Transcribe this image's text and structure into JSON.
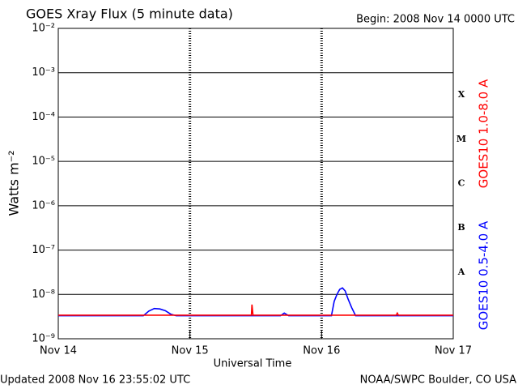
{
  "chart_data": {
    "type": "line",
    "title": "GOES Xray Flux (5 minute data)",
    "subtitle": "Begin:  2008 Nov 14 0000 UTC",
    "updated": "Updated 2008 Nov 16 23:55:02 UTC",
    "credit": "NOAA/SWPC Boulder, CO USA",
    "xlabel": "Universal Time",
    "ylabel": "Watts m⁻²",
    "log_y": true,
    "grid": true,
    "ylim": [
      1e-09,
      0.01
    ],
    "yticks": [
      {
        "value": 1e-09,
        "label": "10⁻⁹"
      },
      {
        "value": 1e-08,
        "label": "10⁻⁸"
      },
      {
        "value": 1e-07,
        "label": "10⁻⁷"
      },
      {
        "value": 1e-06,
        "label": "10⁻⁶"
      },
      {
        "value": 1e-05,
        "label": "10⁻⁵"
      },
      {
        "value": 0.0001,
        "label": "10⁻⁴"
      },
      {
        "value": 0.001,
        "label": "10⁻³"
      },
      {
        "value": 0.01,
        "label": "10⁻²"
      }
    ],
    "xlim": [
      0,
      72
    ],
    "xticks": [
      {
        "value": 0,
        "label": "Nov 14"
      },
      {
        "value": 24,
        "label": "Nov 15"
      },
      {
        "value": 48,
        "label": "Nov 16"
      },
      {
        "value": 72,
        "label": "Nov 17"
      }
    ],
    "flare_classes": [
      "A",
      "B",
      "C",
      "M",
      "X"
    ],
    "x": [
      0,
      15.5,
      16.5,
      17.5,
      18.5,
      19.5,
      20.5,
      21.5,
      35.2,
      35.3,
      35.5,
      40.5,
      41.2,
      42,
      49.8,
      50.3,
      50.8,
      51.3,
      51.8,
      52.3,
      52.8,
      53.5,
      54.2,
      61.6,
      61.8,
      62,
      72
    ],
    "series": [
      {
        "name": "GOES10 0.5-4.0 A",
        "color": "#0000ff",
        "values": [
          3.3e-09,
          3.3e-09,
          4.2e-09,
          4.8e-09,
          4.7e-09,
          4.3e-09,
          3.6e-09,
          3.3e-09,
          3.3e-09,
          3.3e-09,
          3.3e-09,
          3.3e-09,
          3.8e-09,
          3.3e-09,
          3.3e-09,
          7e-09,
          1e-08,
          1.3e-08,
          1.4e-08,
          1.2e-08,
          8e-09,
          5e-09,
          3.3e-09,
          3.3e-09,
          3.3e-09,
          3.3e-09,
          3.3e-09
        ]
      },
      {
        "name": "GOES10 1.0-8.0 A",
        "color": "#ff0000",
        "values": [
          3.4e-09,
          3.4e-09,
          3.4e-09,
          3.4e-09,
          3.4e-09,
          3.4e-09,
          3.4e-09,
          3.4e-09,
          3.4e-09,
          5.9e-09,
          3.4e-09,
          3.4e-09,
          3.4e-09,
          3.4e-09,
          3.4e-09,
          3.4e-09,
          3.4e-09,
          3.4e-09,
          3.4e-09,
          3.4e-09,
          3.4e-09,
          3.4e-09,
          3.4e-09,
          3.4e-09,
          3.8e-09,
          3.4e-09,
          3.4e-09
        ]
      }
    ]
  }
}
